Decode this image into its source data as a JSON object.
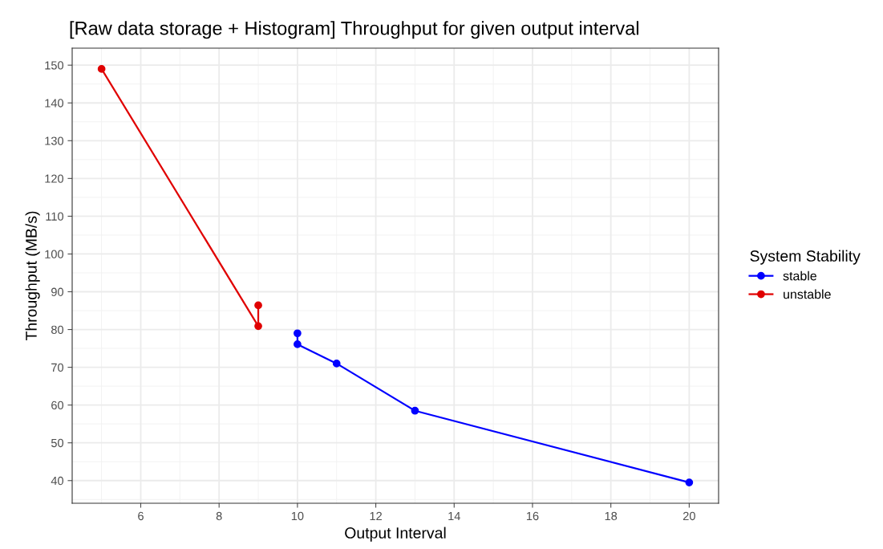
{
  "chart_data": {
    "type": "line",
    "title": "[Raw data storage + Histogram] Throughput for given output interval",
    "xlabel": "Output Interval",
    "ylabel": "Throughput (MB/s)",
    "legend_title": "System Stability",
    "series": [
      {
        "name": "stable",
        "color": "#0000ff",
        "x": [
          10,
          10,
          11,
          13,
          20
        ],
        "values": [
          79,
          76.1,
          71,
          58.5,
          39.5
        ]
      },
      {
        "name": "unstable",
        "color": "#e00000",
        "x": [
          5,
          9,
          9
        ],
        "values": [
          149,
          80.9,
          86.4
        ]
      }
    ],
    "xlim": [
      4.25,
      20.75
    ],
    "xticks": [
      6,
      8,
      10,
      12,
      14,
      16,
      18,
      20
    ],
    "ylim": [
      34,
      154.5
    ],
    "yticks": [
      40,
      50,
      60,
      70,
      80,
      90,
      100,
      110,
      120,
      130,
      140,
      150
    ],
    "grid": true,
    "legend": "right",
    "marker": "circle",
    "line_style": "solid"
  }
}
